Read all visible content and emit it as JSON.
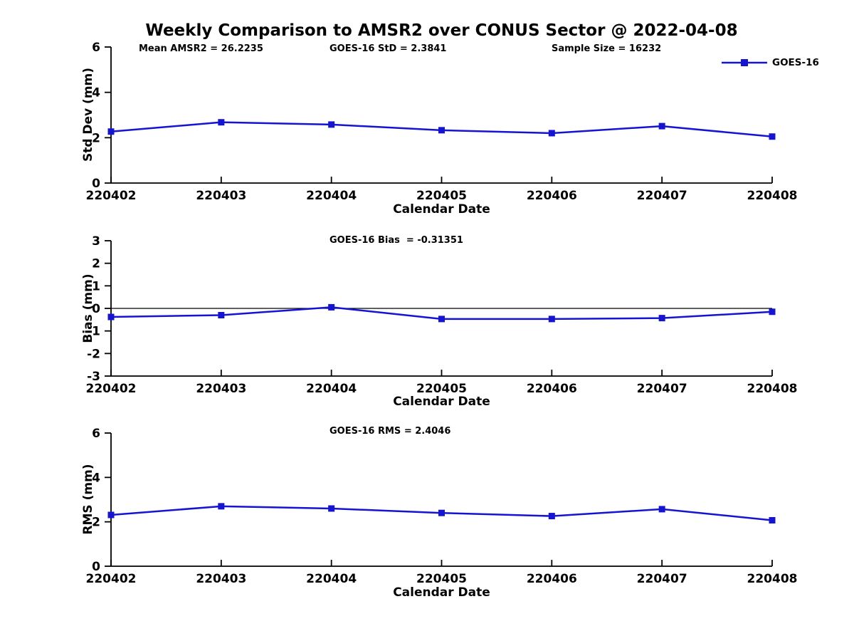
{
  "figure": {
    "title": "Weekly Comparison to AMSR2 over CONUS Sector @ 2022-04-08",
    "background_color": "#ffffff",
    "line_color": "#1414d2",
    "axis_color": "#000000",
    "legend": {
      "label": "GOES-16",
      "position": "top-right"
    }
  },
  "chart_data": [
    {
      "type": "line",
      "title": "",
      "annotations": [
        "Mean AMSR2 = 26.2235",
        "GOES-16 StD = 2.3841",
        "Sample Size = 16232"
      ],
      "categories": [
        "220402",
        "220403",
        "220404",
        "220405",
        "220406",
        "220407",
        "220408"
      ],
      "series": [
        {
          "name": "GOES-16",
          "values": [
            2.27,
            2.68,
            2.58,
            2.33,
            2.2,
            2.51,
            2.05
          ]
        }
      ],
      "xlabel": "Calendar Date",
      "ylabel": "Std Dev (mm)",
      "ylim": [
        0,
        6
      ],
      "yticks": [
        0,
        2,
        4,
        6
      ],
      "grid": false,
      "zero_line": false,
      "legend_shown": true
    },
    {
      "type": "line",
      "title": "GOES-16 Bias  = -0.31351",
      "categories": [
        "220402",
        "220403",
        "220404",
        "220405",
        "220406",
        "220407",
        "220408"
      ],
      "series": [
        {
          "name": "GOES-16",
          "values": [
            -0.38,
            -0.3,
            0.05,
            -0.47,
            -0.47,
            -0.43,
            -0.15
          ]
        }
      ],
      "xlabel": "Calendar Date",
      "ylabel": "Bias (mm)",
      "ylim": [
        -3,
        3
      ],
      "yticks": [
        -3,
        -2,
        -1,
        0,
        1,
        2,
        3
      ],
      "grid": false,
      "zero_line": true,
      "legend_shown": false
    },
    {
      "type": "line",
      "title": "GOES-16 RMS = 2.4046",
      "categories": [
        "220402",
        "220403",
        "220404",
        "220405",
        "220406",
        "220407",
        "220408"
      ],
      "series": [
        {
          "name": "GOES-16",
          "values": [
            2.31,
            2.7,
            2.6,
            2.4,
            2.26,
            2.57,
            2.07
          ]
        }
      ],
      "xlabel": "Calendar Date",
      "ylabel": "RMS (mm)",
      "ylim": [
        0,
        6
      ],
      "yticks": [
        0,
        2,
        4,
        6
      ],
      "grid": false,
      "zero_line": false,
      "legend_shown": false
    }
  ]
}
